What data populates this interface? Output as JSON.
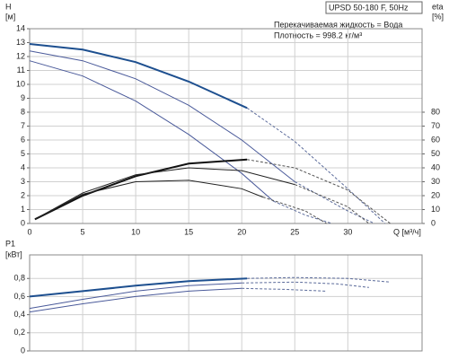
{
  "chart_data": [
    {
      "type": "line",
      "title": "UPSD 50-180 F, 50Hz",
      "annotations": [
        "Перекачиваемая жидкость = Вода",
        "Плотность = 998.2 кг/м³"
      ],
      "ylabel": "H",
      "yunit": "[м]",
      "y2label": "eta",
      "y2unit": "[%]",
      "xlabel": "Q [м³/ч]",
      "xlim": [
        0,
        37
      ],
      "xticks": [
        0,
        5,
        10,
        15,
        20,
        25,
        30
      ],
      "ylim": [
        0,
        14
      ],
      "yticks": [
        0,
        1,
        2,
        3,
        4,
        5,
        6,
        7,
        8,
        9,
        10,
        11,
        12,
        13,
        14
      ],
      "y2lim": [
        0,
        140
      ],
      "y2ticks": [
        0,
        10,
        20,
        30,
        40,
        50,
        60,
        70,
        80
      ],
      "grid": true,
      "series": [
        {
          "color": "#1d4f8f",
          "style": "solid",
          "width": 2,
          "x": [
            0,
            5,
            10,
            15,
            20.5
          ],
          "values": [
            12.9,
            12.5,
            11.6,
            10.2,
            8.3
          ]
        },
        {
          "color": "#5a6a9a",
          "style": "dashed",
          "width": 1,
          "x": [
            20.5,
            25,
            30,
            33.5
          ],
          "values": [
            8.3,
            5.9,
            2.5,
            0
          ]
        },
        {
          "color": "#4a5a9a",
          "style": "solid",
          "width": 1,
          "x": [
            0,
            5,
            10,
            15,
            20,
            25
          ],
          "values": [
            12.4,
            11.7,
            10.4,
            8.5,
            6.0,
            3.0
          ]
        },
        {
          "color": "#5a6a9a",
          "style": "dashed",
          "width": 1,
          "x": [
            25,
            30,
            32.5
          ],
          "values": [
            3.0,
            0.9,
            0
          ]
        },
        {
          "color": "#4a5a9a",
          "style": "solid",
          "width": 1,
          "x": [
            0,
            5,
            10,
            15,
            20,
            23
          ],
          "values": [
            11.7,
            10.6,
            8.8,
            6.4,
            3.6,
            1.6
          ]
        },
        {
          "color": "#5a6a9a",
          "style": "dashed",
          "width": 1,
          "x": [
            23,
            26,
            28.5
          ],
          "values": [
            1.6,
            0.6,
            0
          ]
        },
        {
          "axis": "y2",
          "color": "#111111",
          "style": "solid",
          "width": 2,
          "x": [
            0.5,
            5,
            10,
            15,
            20.5
          ],
          "values": [
            3,
            20,
            34,
            43,
            46
          ]
        },
        {
          "axis": "y2",
          "color": "#555555",
          "style": "dashed",
          "width": 1,
          "x": [
            20.5,
            25,
            30,
            34
          ],
          "values": [
            46,
            40,
            24,
            0
          ]
        },
        {
          "axis": "y2",
          "color": "#222222",
          "style": "solid",
          "width": 1,
          "x": [
            0.5,
            5,
            10,
            15,
            20,
            25
          ],
          "values": [
            3,
            22,
            35,
            40,
            38,
            28
          ]
        },
        {
          "axis": "y2",
          "color": "#555555",
          "style": "dashed",
          "width": 1,
          "x": [
            25,
            30,
            32
          ],
          "values": [
            28,
            12,
            0
          ]
        },
        {
          "axis": "y2",
          "color": "#222222",
          "style": "solid",
          "width": 1,
          "x": [
            0.5,
            5,
            10,
            15,
            20,
            22
          ],
          "values": [
            3,
            21,
            30,
            31,
            25,
            19
          ]
        },
        {
          "axis": "y2",
          "color": "#555555",
          "style": "dashed",
          "width": 1,
          "x": [
            22,
            26,
            28
          ],
          "values": [
            19,
            9,
            0
          ]
        }
      ]
    },
    {
      "type": "line",
      "ylabel": "P1",
      "yunit": "[кВт]",
      "xlim": [
        0,
        37
      ],
      "xticks": [
        0,
        5,
        10,
        15,
        20,
        25,
        30
      ],
      "ylim": [
        0,
        1.06
      ],
      "yticks": [
        0,
        {
          "value": 0.2,
          "label": "0,2"
        },
        {
          "value": 0.4,
          "label": "0,4"
        },
        {
          "value": 0.6,
          "label": "0,6"
        },
        {
          "value": 0.8,
          "label": "0,8"
        }
      ],
      "grid": true,
      "series": [
        {
          "color": "#1d4f8f",
          "style": "solid",
          "width": 2,
          "x": [
            0,
            5,
            10,
            15,
            20.5
          ],
          "values": [
            0.6,
            0.66,
            0.72,
            0.77,
            0.8
          ]
        },
        {
          "color": "#5a6a9a",
          "style": "dashed",
          "width": 1,
          "x": [
            20.5,
            25,
            30,
            34
          ],
          "values": [
            0.8,
            0.81,
            0.8,
            0.76
          ]
        },
        {
          "color": "#4a5a9a",
          "style": "solid",
          "width": 1,
          "x": [
            0,
            5,
            10,
            15,
            20
          ],
          "values": [
            0.47,
            0.57,
            0.66,
            0.72,
            0.75
          ]
        },
        {
          "color": "#5a6a9a",
          "style": "dashed",
          "width": 1,
          "x": [
            20,
            25,
            29,
            32
          ],
          "values": [
            0.75,
            0.76,
            0.74,
            0.7
          ]
        },
        {
          "color": "#4a5a9a",
          "style": "solid",
          "width": 1,
          "x": [
            0,
            5,
            10,
            15,
            20
          ],
          "values": [
            0.43,
            0.52,
            0.6,
            0.66,
            0.69
          ]
        },
        {
          "color": "#5a6a9a",
          "style": "dashed",
          "width": 1,
          "x": [
            20,
            24,
            28
          ],
          "values": [
            0.69,
            0.68,
            0.66
          ]
        }
      ]
    }
  ]
}
